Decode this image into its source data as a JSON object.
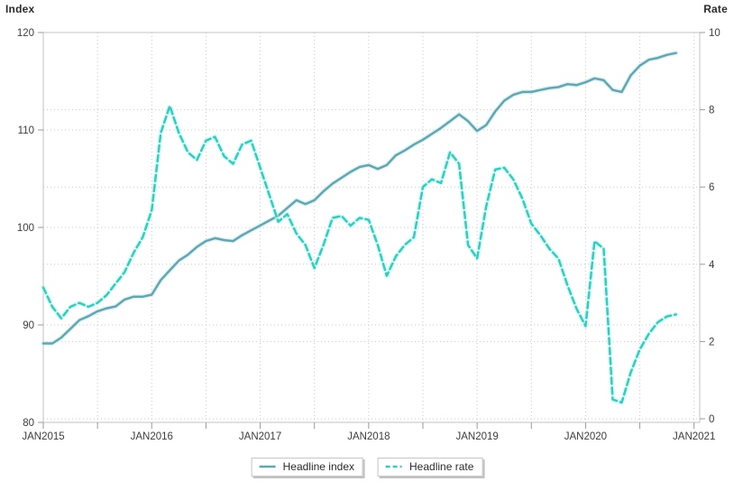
{
  "chart_data": {
    "type": "line",
    "title": "",
    "grid": "dotted",
    "x_axis": {
      "tick_labels": [
        "JAN2015",
        "JAN2016",
        "JAN2017",
        "JAN2018",
        "JAN2019",
        "JAN2020",
        "JAN2021"
      ],
      "minor_ticks_every_months": 6,
      "range_months": 72
    },
    "y_left": {
      "label": "Index",
      "ticks": [
        80,
        90,
        100,
        110,
        120
      ],
      "range": [
        80,
        120
      ]
    },
    "y_right": {
      "label": "Rate",
      "ticks": [
        0,
        2,
        4,
        6,
        8,
        10
      ],
      "range": [
        0,
        10
      ]
    },
    "series": [
      {
        "name": "Headline index",
        "axis": "left",
        "style": "solid",
        "color": "#5fa8b2",
        "halo_color": "#cfe9ed",
        "start": "2015-01",
        "frequency": "monthly",
        "values": [
          88.1,
          88.1,
          88.7,
          89.6,
          90.5,
          90.9,
          91.4,
          91.7,
          91.9,
          92.6,
          92.9,
          92.9,
          93.1,
          94.6,
          95.6,
          96.6,
          97.2,
          98.0,
          98.6,
          98.9,
          98.7,
          98.6,
          99.2,
          99.7,
          100.2,
          100.7,
          101.2,
          102.0,
          102.8,
          102.4,
          102.8,
          103.7,
          104.5,
          105.1,
          105.7,
          106.2,
          106.4,
          106.0,
          106.4,
          107.4,
          107.9,
          108.5,
          109.0,
          109.6,
          110.2,
          110.9,
          111.6,
          110.9,
          109.9,
          110.5,
          111.9,
          113.0,
          113.6,
          113.9,
          113.9,
          114.1,
          114.3,
          114.4,
          114.7,
          114.6,
          114.9,
          115.3,
          115.1,
          114.1,
          113.9,
          115.6,
          116.6,
          117.2,
          117.4,
          117.7,
          117.9
        ]
      },
      {
        "name": "Headline rate",
        "axis": "right",
        "style": "dashed",
        "color": "#2bd0c1",
        "halo_color": "#c6f3ee",
        "start": "2015-01",
        "frequency": "monthly",
        "values": [
          3.4,
          2.9,
          2.6,
          2.9,
          3.0,
          2.9,
          3.0,
          3.2,
          3.5,
          3.8,
          4.3,
          4.7,
          5.4,
          7.4,
          8.1,
          7.4,
          6.9,
          6.7,
          7.2,
          7.3,
          6.8,
          6.6,
          7.1,
          7.2,
          6.5,
          5.8,
          5.1,
          5.3,
          4.8,
          4.5,
          3.9,
          4.5,
          5.2,
          5.25,
          5.0,
          5.2,
          5.15,
          4.5,
          3.7,
          4.2,
          4.5,
          4.7,
          6.0,
          6.2,
          6.1,
          6.9,
          6.6,
          4.5,
          4.15,
          5.5,
          6.45,
          6.5,
          6.2,
          5.7,
          5.05,
          4.75,
          4.4,
          4.15,
          3.45,
          2.85,
          2.4,
          4.6,
          4.4,
          0.5,
          0.42,
          1.2,
          1.8,
          2.2,
          2.5,
          2.65,
          2.7
        ]
      }
    ],
    "legend": {
      "position": "bottom-center",
      "entries": [
        "Headline index",
        "Headline rate"
      ]
    }
  },
  "axes": {
    "left_title": "Index",
    "right_title": "Rate"
  },
  "legend": {
    "index_label": "Headline index",
    "rate_label": "Headline rate"
  },
  "colors": {
    "index_line": "#5fa8b2",
    "rate_line": "#2bd0c1",
    "frame": "#c3c3c3",
    "gridline": "#c9c9c9",
    "tick_text": "#3d3d3d"
  }
}
